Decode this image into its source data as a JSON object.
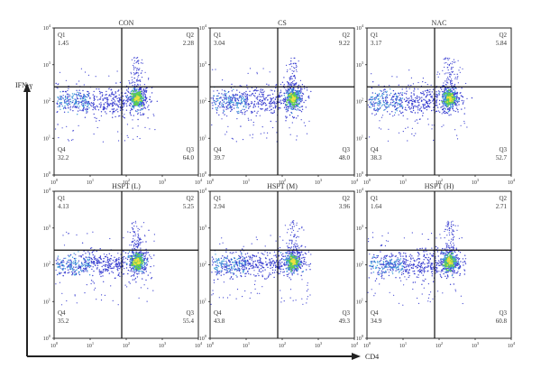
{
  "chart_data": [
    {
      "type": "scatter",
      "title": "CON",
      "xlabel": "CD4",
      "ylabel": "IFN-γ",
      "x_scale": "log",
      "y_scale": "log",
      "xlim": [
        1,
        10000
      ],
      "ylim": [
        1,
        10000
      ],
      "gate": {
        "x": 75,
        "y": 250
      },
      "quadrants": [
        {
          "name": "Q1",
          "value": "1.45"
        },
        {
          "name": "Q2",
          "value": "2.28"
        },
        {
          "name": "Q3",
          "value": "64.0"
        },
        {
          "name": "Q4",
          "value": "32.2"
        }
      ]
    },
    {
      "type": "scatter",
      "title": "CS",
      "x_scale": "log",
      "y_scale": "log",
      "xlim": [
        1,
        10000
      ],
      "ylim": [
        1,
        10000
      ],
      "gate": {
        "x": 75,
        "y": 250
      },
      "quadrants": [
        {
          "name": "Q1",
          "value": "3.04"
        },
        {
          "name": "Q2",
          "value": "9.22"
        },
        {
          "name": "Q3",
          "value": "48.0"
        },
        {
          "name": "Q4",
          "value": "39.7"
        }
      ]
    },
    {
      "type": "scatter",
      "title": "NAC",
      "x_scale": "log",
      "y_scale": "log",
      "xlim": [
        1,
        10000
      ],
      "ylim": [
        1,
        10000
      ],
      "gate": {
        "x": 75,
        "y": 250
      },
      "quadrants": [
        {
          "name": "Q1",
          "value": "3.17"
        },
        {
          "name": "Q2",
          "value": "5.84"
        },
        {
          "name": "Q3",
          "value": "52.7"
        },
        {
          "name": "Q4",
          "value": "38.3"
        }
      ]
    },
    {
      "type": "scatter",
      "title": "HSPT (L)",
      "x_scale": "log",
      "y_scale": "log",
      "xlim": [
        1,
        10000
      ],
      "ylim": [
        1,
        10000
      ],
      "gate": {
        "x": 75,
        "y": 250
      },
      "quadrants": [
        {
          "name": "Q1",
          "value": "4.13"
        },
        {
          "name": "Q2",
          "value": "5.25"
        },
        {
          "name": "Q3",
          "value": "55.4"
        },
        {
          "name": "Q4",
          "value": "35.2"
        }
      ]
    },
    {
      "type": "scatter",
      "title": "HSPT (M)",
      "x_scale": "log",
      "y_scale": "log",
      "xlim": [
        1,
        10000
      ],
      "ylim": [
        1,
        10000
      ],
      "gate": {
        "x": 75,
        "y": 250
      },
      "quadrants": [
        {
          "name": "Q1",
          "value": "2.94"
        },
        {
          "name": "Q2",
          "value": "3.96"
        },
        {
          "name": "Q3",
          "value": "49.3"
        },
        {
          "name": "Q4",
          "value": "43.8"
        }
      ]
    },
    {
      "type": "scatter",
      "title": "HSPT (H)",
      "x_scale": "log",
      "y_scale": "log",
      "xlim": [
        1,
        10000
      ],
      "ylim": [
        1,
        10000
      ],
      "gate": {
        "x": 75,
        "y": 250
      },
      "quadrants": [
        {
          "name": "Q1",
          "value": "1.64"
        },
        {
          "name": "Q2",
          "value": "2.71"
        },
        {
          "name": "Q3",
          "value": "60.8"
        },
        {
          "name": "Q4",
          "value": "34.9"
        }
      ]
    }
  ],
  "axes": {
    "y_title": "IFN-γ",
    "x_title": "CD4",
    "tick_base": "10",
    "tick_exponents": [
      "0",
      "1",
      "2",
      "3",
      "4"
    ]
  },
  "colors": {
    "axis": "#222222",
    "gate": "#111111",
    "dot_sparse": "#3a3fd0",
    "dot_mid": "#3c9ad8",
    "dot_dense": "#5fd04f",
    "dot_core": "#f0e040"
  }
}
